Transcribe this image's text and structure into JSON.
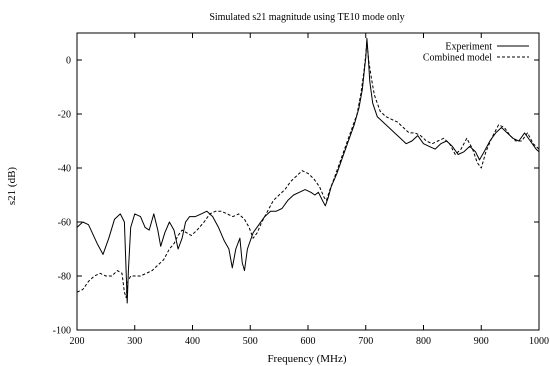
{
  "chart_data": {
    "type": "line",
    "title": "Simulated s21 magnitude using TE10 mode only",
    "xlabel": "Frequency (MHz)",
    "ylabel": "s21 (dB)",
    "xlim": [
      200,
      1000
    ],
    "ylim": [
      -100,
      10
    ],
    "xticks": [
      200,
      300,
      400,
      500,
      600,
      700,
      800,
      900,
      1000
    ],
    "yticks": [
      0,
      -20,
      -40,
      -60,
      -80,
      -100
    ],
    "grid": false,
    "legend_position": "top-right",
    "series": [
      {
        "name": "Experiment",
        "style": "solid",
        "points": [
          [
            200,
            -62
          ],
          [
            210,
            -60
          ],
          [
            220,
            -61
          ],
          [
            235,
            -68
          ],
          [
            245,
            -72
          ],
          [
            255,
            -66
          ],
          [
            265,
            -59
          ],
          [
            275,
            -57
          ],
          [
            282,
            -60
          ],
          [
            285,
            -78
          ],
          [
            287,
            -90
          ],
          [
            289,
            -78
          ],
          [
            293,
            -62
          ],
          [
            300,
            -57
          ],
          [
            310,
            -58
          ],
          [
            318,
            -62
          ],
          [
            325,
            -63
          ],
          [
            333,
            -57
          ],
          [
            340,
            -63
          ],
          [
            345,
            -69
          ],
          [
            352,
            -64
          ],
          [
            360,
            -60
          ],
          [
            368,
            -63
          ],
          [
            375,
            -70
          ],
          [
            382,
            -66
          ],
          [
            388,
            -60
          ],
          [
            395,
            -58
          ],
          [
            405,
            -58
          ],
          [
            415,
            -57
          ],
          [
            425,
            -56
          ],
          [
            435,
            -58
          ],
          [
            445,
            -62
          ],
          [
            455,
            -67
          ],
          [
            463,
            -70
          ],
          [
            469,
            -77
          ],
          [
            475,
            -70
          ],
          [
            482,
            -66
          ],
          [
            486,
            -75
          ],
          [
            490,
            -78
          ],
          [
            495,
            -70
          ],
          [
            505,
            -64
          ],
          [
            515,
            -61
          ],
          [
            525,
            -58
          ],
          [
            535,
            -56
          ],
          [
            545,
            -56
          ],
          [
            555,
            -55
          ],
          [
            565,
            -52
          ],
          [
            575,
            -50
          ],
          [
            585,
            -49
          ],
          [
            595,
            -48
          ],
          [
            605,
            -49
          ],
          [
            612,
            -50
          ],
          [
            618,
            -49
          ],
          [
            625,
            -52
          ],
          [
            630,
            -54
          ],
          [
            635,
            -51
          ],
          [
            640,
            -47
          ],
          [
            650,
            -42
          ],
          [
            660,
            -36
          ],
          [
            670,
            -30
          ],
          [
            680,
            -24
          ],
          [
            688,
            -18
          ],
          [
            694,
            -11
          ],
          [
            698,
            -3
          ],
          [
            700,
            1
          ],
          [
            702,
            8
          ],
          [
            704,
            2
          ],
          [
            707,
            -8
          ],
          [
            712,
            -16
          ],
          [
            720,
            -21
          ],
          [
            730,
            -23
          ],
          [
            740,
            -25
          ],
          [
            750,
            -27
          ],
          [
            760,
            -29
          ],
          [
            770,
            -31
          ],
          [
            780,
            -30
          ],
          [
            790,
            -28
          ],
          [
            800,
            -31
          ],
          [
            810,
            -32
          ],
          [
            820,
            -33
          ],
          [
            830,
            -31
          ],
          [
            840,
            -30
          ],
          [
            850,
            -32
          ],
          [
            860,
            -35
          ],
          [
            870,
            -34
          ],
          [
            880,
            -32
          ],
          [
            890,
            -34
          ],
          [
            897,
            -37
          ],
          [
            905,
            -34
          ],
          [
            915,
            -30
          ],
          [
            925,
            -27
          ],
          [
            935,
            -25
          ],
          [
            945,
            -27
          ],
          [
            955,
            -29
          ],
          [
            965,
            -30
          ],
          [
            975,
            -27
          ],
          [
            985,
            -30
          ],
          [
            995,
            -33
          ],
          [
            1000,
            -34
          ]
        ]
      },
      {
        "name": "Combined model",
        "style": "dashed",
        "points": [
          [
            200,
            -86
          ],
          [
            210,
            -85
          ],
          [
            220,
            -82
          ],
          [
            230,
            -80
          ],
          [
            240,
            -79
          ],
          [
            250,
            -80
          ],
          [
            260,
            -80
          ],
          [
            270,
            -78
          ],
          [
            278,
            -79
          ],
          [
            282,
            -86
          ],
          [
            285,
            -88
          ],
          [
            288,
            -82
          ],
          [
            293,
            -80
          ],
          [
            300,
            -80
          ],
          [
            310,
            -80
          ],
          [
            320,
            -79
          ],
          [
            330,
            -78
          ],
          [
            340,
            -76
          ],
          [
            350,
            -74
          ],
          [
            360,
            -70
          ],
          [
            368,
            -68
          ],
          [
            375,
            -65
          ],
          [
            382,
            -63
          ],
          [
            390,
            -64
          ],
          [
            398,
            -65
          ],
          [
            408,
            -63
          ],
          [
            420,
            -60
          ],
          [
            430,
            -57
          ],
          [
            440,
            -56
          ],
          [
            450,
            -56
          ],
          [
            460,
            -57
          ],
          [
            470,
            -58
          ],
          [
            480,
            -57
          ],
          [
            490,
            -59
          ],
          [
            498,
            -62
          ],
          [
            505,
            -66
          ],
          [
            512,
            -64
          ],
          [
            520,
            -60
          ],
          [
            530,
            -56
          ],
          [
            540,
            -52
          ],
          [
            550,
            -50
          ],
          [
            560,
            -48
          ],
          [
            570,
            -45
          ],
          [
            580,
            -43
          ],
          [
            590,
            -41
          ],
          [
            600,
            -42
          ],
          [
            610,
            -44
          ],
          [
            620,
            -47
          ],
          [
            628,
            -51
          ],
          [
            632,
            -52
          ],
          [
            638,
            -48
          ],
          [
            645,
            -44
          ],
          [
            655,
            -38
          ],
          [
            665,
            -32
          ],
          [
            675,
            -26
          ],
          [
            685,
            -20
          ],
          [
            692,
            -12
          ],
          [
            697,
            -4
          ],
          [
            700,
            2
          ],
          [
            702,
            7
          ],
          [
            705,
            0
          ],
          [
            710,
            -7
          ],
          [
            715,
            -13
          ],
          [
            725,
            -19
          ],
          [
            735,
            -21
          ],
          [
            745,
            -22
          ],
          [
            755,
            -23
          ],
          [
            765,
            -25
          ],
          [
            775,
            -27
          ],
          [
            785,
            -27
          ],
          [
            795,
            -28
          ],
          [
            805,
            -30
          ],
          [
            815,
            -31
          ],
          [
            825,
            -30
          ],
          [
            835,
            -29
          ],
          [
            845,
            -31
          ],
          [
            855,
            -35
          ],
          [
            865,
            -33
          ],
          [
            875,
            -29
          ],
          [
            885,
            -33
          ],
          [
            893,
            -38
          ],
          [
            900,
            -40
          ],
          [
            908,
            -34
          ],
          [
            918,
            -29
          ],
          [
            930,
            -24
          ],
          [
            940,
            -25
          ],
          [
            950,
            -28
          ],
          [
            960,
            -30
          ],
          [
            970,
            -30
          ],
          [
            980,
            -27
          ],
          [
            990,
            -31
          ],
          [
            1000,
            -33
          ]
        ]
      }
    ]
  }
}
